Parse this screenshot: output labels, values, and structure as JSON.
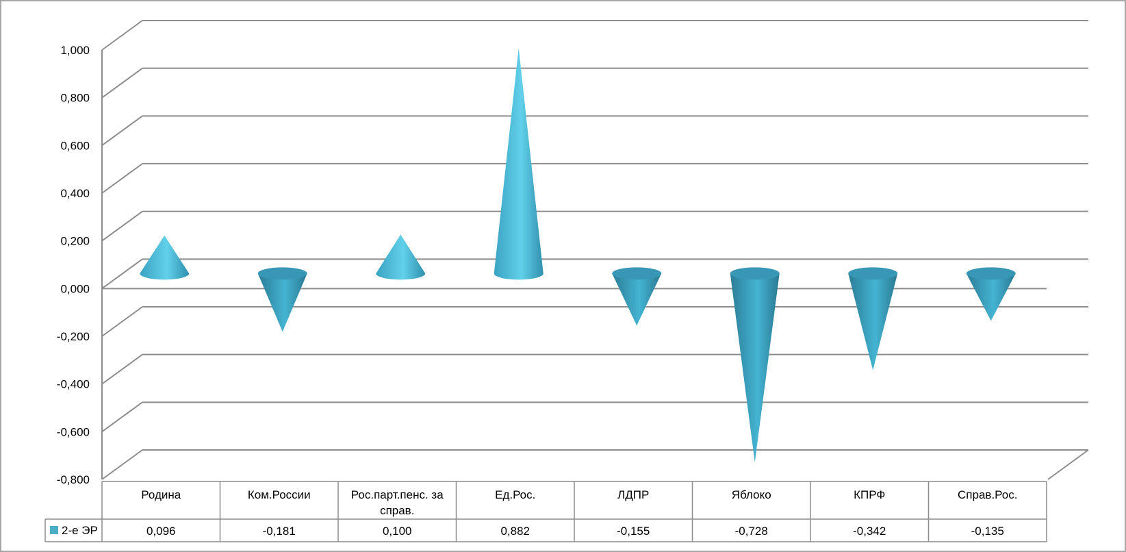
{
  "chart_data": {
    "type": "bar",
    "shape": "3d-cone",
    "categories": [
      "Родина",
      "Ком.России",
      "Рос.парт.пенс. за справ.",
      "Ед.Рос.",
      "ЛДПР",
      "Яблоко",
      "КПРФ",
      "Справ.Рос."
    ],
    "category_lines": [
      [
        "Родина"
      ],
      [
        "Ком.России"
      ],
      [
        "Рос.парт.пенс. за",
        "справ."
      ],
      [
        "Ед.Рос."
      ],
      [
        "ЛДПР"
      ],
      [
        "Яблоко"
      ],
      [
        "КПРФ"
      ],
      [
        "Справ.Рос."
      ]
    ],
    "series": [
      {
        "name": "2-е ЭР",
        "values": [
          0.096,
          -0.181,
          0.1,
          0.882,
          -0.155,
          -0.728,
          -0.342,
          -0.135
        ],
        "value_labels": [
          "0,096",
          "-0,181",
          "0,100",
          "0,882",
          "-0,155",
          "-0,728",
          "-0,342",
          "-0,135"
        ],
        "color": "#4bacc6"
      }
    ],
    "ylim": [
      -0.8,
      1.0
    ],
    "yticks": [
      1.0,
      0.8,
      0.6,
      0.4,
      0.2,
      0.0,
      -0.2,
      -0.4,
      -0.6,
      -0.8
    ],
    "ytick_labels": [
      "1,000",
      "0,800",
      "0,600",
      "0,400",
      "0,200",
      "0,000",
      "-0,200",
      "-0,400",
      "-0,600",
      "-0,800"
    ],
    "grid": true,
    "legend": "data-table",
    "data_table": true,
    "title": "",
    "xlabel": "",
    "ylabel": ""
  },
  "colors": {
    "cone_light": "#5ccbe6",
    "cone_mid": "#3aa3c2",
    "cone_dark": "#2b7c96",
    "grid": "#8c8c8c",
    "border": "#a6a6a6"
  }
}
